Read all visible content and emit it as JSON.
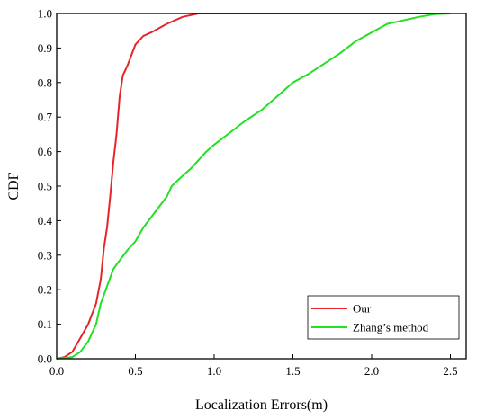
{
  "chart_data": {
    "type": "line",
    "title": "",
    "xlabel": "Localization Errors(m)",
    "ylabel": "CDF",
    "xlim": [
      0,
      2.6
    ],
    "ylim": [
      0,
      1.0
    ],
    "xticks": [
      "0.0",
      "0.5",
      "1.0",
      "1.5",
      "2.0",
      "2.5"
    ],
    "yticks": [
      "0.0",
      "0.1",
      "0.2",
      "0.3",
      "0.4",
      "0.5",
      "0.6",
      "0.7",
      "0.8",
      "0.9",
      "1.0"
    ],
    "grid": false,
    "legend_position": "bottom-right",
    "series": [
      {
        "name": "Our",
        "color": "#e8242b",
        "points": [
          [
            0,
            0
          ],
          [
            0.05,
            0.005
          ],
          [
            0.1,
            0.02
          ],
          [
            0.15,
            0.06
          ],
          [
            0.2,
            0.1
          ],
          [
            0.25,
            0.16
          ],
          [
            0.28,
            0.23
          ],
          [
            0.3,
            0.32
          ],
          [
            0.32,
            0.38
          ],
          [
            0.34,
            0.47
          ],
          [
            0.36,
            0.57
          ],
          [
            0.38,
            0.65
          ],
          [
            0.4,
            0.76
          ],
          [
            0.42,
            0.82
          ],
          [
            0.45,
            0.85
          ],
          [
            0.5,
            0.91
          ],
          [
            0.55,
            0.935
          ],
          [
            0.6,
            0.945
          ],
          [
            0.7,
            0.97
          ],
          [
            0.8,
            0.99
          ],
          [
            0.9,
            1.0
          ],
          [
            1.0,
            1.0
          ],
          [
            2.5,
            1.0
          ]
        ]
      },
      {
        "name": "Zhang’s method",
        "color": "#22e022",
        "points": [
          [
            0,
            0
          ],
          [
            0.1,
            0.005
          ],
          [
            0.15,
            0.02
          ],
          [
            0.2,
            0.05
          ],
          [
            0.25,
            0.1
          ],
          [
            0.28,
            0.16
          ],
          [
            0.32,
            0.21
          ],
          [
            0.36,
            0.26
          ],
          [
            0.4,
            0.285
          ],
          [
            0.45,
            0.315
          ],
          [
            0.5,
            0.34
          ],
          [
            0.55,
            0.38
          ],
          [
            0.6,
            0.41
          ],
          [
            0.65,
            0.44
          ],
          [
            0.7,
            0.47
          ],
          [
            0.73,
            0.5
          ],
          [
            0.8,
            0.53
          ],
          [
            0.85,
            0.55
          ],
          [
            0.95,
            0.6
          ],
          [
            1.0,
            0.62
          ],
          [
            1.1,
            0.655
          ],
          [
            1.2,
            0.69
          ],
          [
            1.3,
            0.72
          ],
          [
            1.4,
            0.76
          ],
          [
            1.5,
            0.8
          ],
          [
            1.6,
            0.825
          ],
          [
            1.7,
            0.855
          ],
          [
            1.8,
            0.885
          ],
          [
            1.9,
            0.92
          ],
          [
            2.0,
            0.945
          ],
          [
            2.1,
            0.97
          ],
          [
            2.2,
            0.98
          ],
          [
            2.3,
            0.99
          ],
          [
            2.4,
            0.998
          ],
          [
            2.5,
            1.0
          ]
        ]
      }
    ]
  }
}
